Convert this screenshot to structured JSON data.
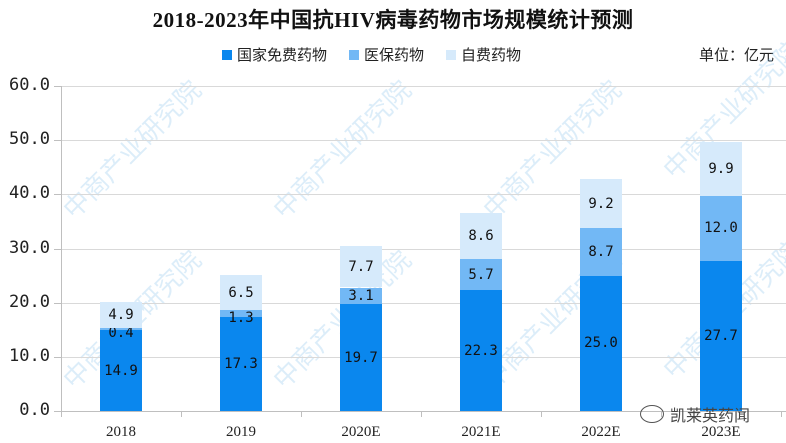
{
  "title": "2018-2023年中国抗HIV病毒药物市场规模统计预测",
  "unit_label": "单位：亿元",
  "legend": [
    {
      "label": "国家免费药物",
      "color": "#0a87ee"
    },
    {
      "label": "医保药物",
      "color": "#72b8f5"
    },
    {
      "label": "自费药物",
      "color": "#d6eafb"
    }
  ],
  "watermark": "中商产业研究院",
  "credit": "凯莱英药闻",
  "y_ticks": [
    "60.0",
    "50.0",
    "40.0",
    "30.0",
    "20.0",
    "10.0",
    "0.0"
  ],
  "chart_data": {
    "type": "bar",
    "stacked": true,
    "title": "2018-2023年中国抗HIV病毒药物市场规模统计预测",
    "xlabel": "",
    "ylabel": "亿元",
    "ylim": [
      0,
      60
    ],
    "y_ticks": [
      0,
      10,
      20,
      30,
      40,
      50,
      60
    ],
    "grid": true,
    "legend_position": "top",
    "categories": [
      "2018",
      "2019",
      "2020E",
      "2021E",
      "2022E",
      "2023E"
    ],
    "series": [
      {
        "name": "国家免费药物",
        "color": "#0a87ee",
        "values": [
          14.9,
          17.3,
          19.7,
          22.3,
          25.0,
          27.7
        ]
      },
      {
        "name": "医保药物",
        "color": "#72b8f5",
        "values": [
          0.4,
          1.3,
          3.1,
          5.7,
          8.7,
          12.0
        ]
      },
      {
        "name": "自费药物",
        "color": "#d6eafb",
        "values": [
          4.9,
          6.5,
          7.7,
          8.6,
          9.2,
          9.9
        ]
      }
    ],
    "labels": [
      [
        "14.9",
        "0.4",
        "4.9"
      ],
      [
        "17.3",
        "1.3",
        "6.5"
      ],
      [
        "19.7",
        "3.1",
        "7.7"
      ],
      [
        "22.3",
        "5.7",
        "8.6"
      ],
      [
        "25.0",
        "8.7",
        "9.2"
      ],
      [
        "27.7",
        "12.0",
        "9.9"
      ]
    ]
  }
}
